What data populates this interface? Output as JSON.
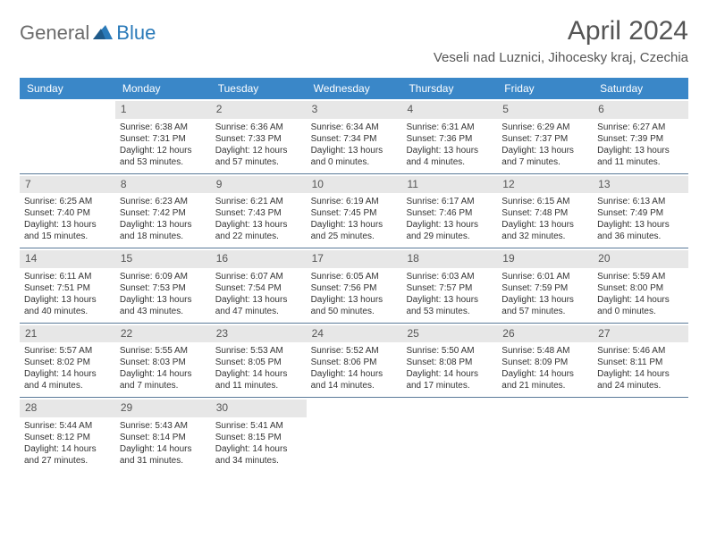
{
  "logo": {
    "text1": "General",
    "text2": "Blue"
  },
  "title": "April 2024",
  "location": "Veseli nad Luznici, Jihocesky kraj, Czechia",
  "colors": {
    "header_bg": "#3a87c8",
    "daynum_bg": "#e7e7e7",
    "week_border": "#5a7a99",
    "text": "#333333",
    "logo_gray": "#6b6b6b",
    "logo_blue": "#2a7ab9"
  },
  "dayheads": [
    "Sunday",
    "Monday",
    "Tuesday",
    "Wednesday",
    "Thursday",
    "Friday",
    "Saturday"
  ],
  "weeks": [
    [
      {
        "num": "",
        "sunrise": "",
        "sunset": "",
        "day1": "",
        "day2": ""
      },
      {
        "num": "1",
        "sunrise": "Sunrise: 6:38 AM",
        "sunset": "Sunset: 7:31 PM",
        "day1": "Daylight: 12 hours",
        "day2": "and 53 minutes."
      },
      {
        "num": "2",
        "sunrise": "Sunrise: 6:36 AM",
        "sunset": "Sunset: 7:33 PM",
        "day1": "Daylight: 12 hours",
        "day2": "and 57 minutes."
      },
      {
        "num": "3",
        "sunrise": "Sunrise: 6:34 AM",
        "sunset": "Sunset: 7:34 PM",
        "day1": "Daylight: 13 hours",
        "day2": "and 0 minutes."
      },
      {
        "num": "4",
        "sunrise": "Sunrise: 6:31 AM",
        "sunset": "Sunset: 7:36 PM",
        "day1": "Daylight: 13 hours",
        "day2": "and 4 minutes."
      },
      {
        "num": "5",
        "sunrise": "Sunrise: 6:29 AM",
        "sunset": "Sunset: 7:37 PM",
        "day1": "Daylight: 13 hours",
        "day2": "and 7 minutes."
      },
      {
        "num": "6",
        "sunrise": "Sunrise: 6:27 AM",
        "sunset": "Sunset: 7:39 PM",
        "day1": "Daylight: 13 hours",
        "day2": "and 11 minutes."
      }
    ],
    [
      {
        "num": "7",
        "sunrise": "Sunrise: 6:25 AM",
        "sunset": "Sunset: 7:40 PM",
        "day1": "Daylight: 13 hours",
        "day2": "and 15 minutes."
      },
      {
        "num": "8",
        "sunrise": "Sunrise: 6:23 AM",
        "sunset": "Sunset: 7:42 PM",
        "day1": "Daylight: 13 hours",
        "day2": "and 18 minutes."
      },
      {
        "num": "9",
        "sunrise": "Sunrise: 6:21 AM",
        "sunset": "Sunset: 7:43 PM",
        "day1": "Daylight: 13 hours",
        "day2": "and 22 minutes."
      },
      {
        "num": "10",
        "sunrise": "Sunrise: 6:19 AM",
        "sunset": "Sunset: 7:45 PM",
        "day1": "Daylight: 13 hours",
        "day2": "and 25 minutes."
      },
      {
        "num": "11",
        "sunrise": "Sunrise: 6:17 AM",
        "sunset": "Sunset: 7:46 PM",
        "day1": "Daylight: 13 hours",
        "day2": "and 29 minutes."
      },
      {
        "num": "12",
        "sunrise": "Sunrise: 6:15 AM",
        "sunset": "Sunset: 7:48 PM",
        "day1": "Daylight: 13 hours",
        "day2": "and 32 minutes."
      },
      {
        "num": "13",
        "sunrise": "Sunrise: 6:13 AM",
        "sunset": "Sunset: 7:49 PM",
        "day1": "Daylight: 13 hours",
        "day2": "and 36 minutes."
      }
    ],
    [
      {
        "num": "14",
        "sunrise": "Sunrise: 6:11 AM",
        "sunset": "Sunset: 7:51 PM",
        "day1": "Daylight: 13 hours",
        "day2": "and 40 minutes."
      },
      {
        "num": "15",
        "sunrise": "Sunrise: 6:09 AM",
        "sunset": "Sunset: 7:53 PM",
        "day1": "Daylight: 13 hours",
        "day2": "and 43 minutes."
      },
      {
        "num": "16",
        "sunrise": "Sunrise: 6:07 AM",
        "sunset": "Sunset: 7:54 PM",
        "day1": "Daylight: 13 hours",
        "day2": "and 47 minutes."
      },
      {
        "num": "17",
        "sunrise": "Sunrise: 6:05 AM",
        "sunset": "Sunset: 7:56 PM",
        "day1": "Daylight: 13 hours",
        "day2": "and 50 minutes."
      },
      {
        "num": "18",
        "sunrise": "Sunrise: 6:03 AM",
        "sunset": "Sunset: 7:57 PM",
        "day1": "Daylight: 13 hours",
        "day2": "and 53 minutes."
      },
      {
        "num": "19",
        "sunrise": "Sunrise: 6:01 AM",
        "sunset": "Sunset: 7:59 PM",
        "day1": "Daylight: 13 hours",
        "day2": "and 57 minutes."
      },
      {
        "num": "20",
        "sunrise": "Sunrise: 5:59 AM",
        "sunset": "Sunset: 8:00 PM",
        "day1": "Daylight: 14 hours",
        "day2": "and 0 minutes."
      }
    ],
    [
      {
        "num": "21",
        "sunrise": "Sunrise: 5:57 AM",
        "sunset": "Sunset: 8:02 PM",
        "day1": "Daylight: 14 hours",
        "day2": "and 4 minutes."
      },
      {
        "num": "22",
        "sunrise": "Sunrise: 5:55 AM",
        "sunset": "Sunset: 8:03 PM",
        "day1": "Daylight: 14 hours",
        "day2": "and 7 minutes."
      },
      {
        "num": "23",
        "sunrise": "Sunrise: 5:53 AM",
        "sunset": "Sunset: 8:05 PM",
        "day1": "Daylight: 14 hours",
        "day2": "and 11 minutes."
      },
      {
        "num": "24",
        "sunrise": "Sunrise: 5:52 AM",
        "sunset": "Sunset: 8:06 PM",
        "day1": "Daylight: 14 hours",
        "day2": "and 14 minutes."
      },
      {
        "num": "25",
        "sunrise": "Sunrise: 5:50 AM",
        "sunset": "Sunset: 8:08 PM",
        "day1": "Daylight: 14 hours",
        "day2": "and 17 minutes."
      },
      {
        "num": "26",
        "sunrise": "Sunrise: 5:48 AM",
        "sunset": "Sunset: 8:09 PM",
        "day1": "Daylight: 14 hours",
        "day2": "and 21 minutes."
      },
      {
        "num": "27",
        "sunrise": "Sunrise: 5:46 AM",
        "sunset": "Sunset: 8:11 PM",
        "day1": "Daylight: 14 hours",
        "day2": "and 24 minutes."
      }
    ],
    [
      {
        "num": "28",
        "sunrise": "Sunrise: 5:44 AM",
        "sunset": "Sunset: 8:12 PM",
        "day1": "Daylight: 14 hours",
        "day2": "and 27 minutes."
      },
      {
        "num": "29",
        "sunrise": "Sunrise: 5:43 AM",
        "sunset": "Sunset: 8:14 PM",
        "day1": "Daylight: 14 hours",
        "day2": "and 31 minutes."
      },
      {
        "num": "30",
        "sunrise": "Sunrise: 5:41 AM",
        "sunset": "Sunset: 8:15 PM",
        "day1": "Daylight: 14 hours",
        "day2": "and 34 minutes."
      },
      {
        "num": "",
        "sunrise": "",
        "sunset": "",
        "day1": "",
        "day2": ""
      },
      {
        "num": "",
        "sunrise": "",
        "sunset": "",
        "day1": "",
        "day2": ""
      },
      {
        "num": "",
        "sunrise": "",
        "sunset": "",
        "day1": "",
        "day2": ""
      },
      {
        "num": "",
        "sunrise": "",
        "sunset": "",
        "day1": "",
        "day2": ""
      }
    ]
  ]
}
